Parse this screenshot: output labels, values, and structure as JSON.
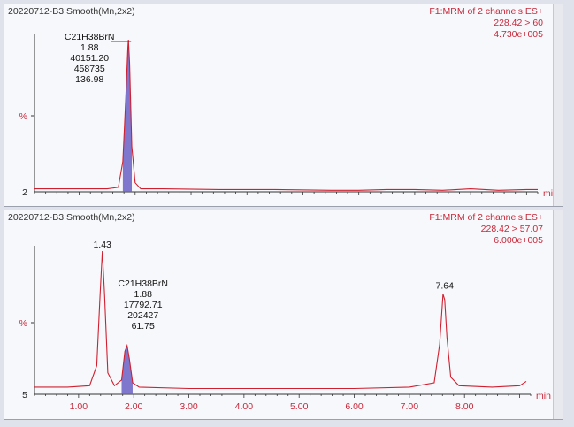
{
  "colors": {
    "trace": "#d02030",
    "fill": "#6a5fc4",
    "axis": "#333333",
    "info": "#c8283a"
  },
  "top_panel": {
    "title": "20220712-B3 Smooth(Mn,2x2)",
    "info_line1": "F1:MRM of 2 channels,ES+",
    "info_line2": "228.42 > 60",
    "info_line3": "4.730e+005",
    "y_label": "%",
    "y_min_label": "2",
    "x_unit": "min",
    "peak_annotation": {
      "name": "C21H38BrN",
      "rt": "1.88",
      "area": "40151.20",
      "height": "458735",
      "sn": "136.98"
    }
  },
  "bottom_panel": {
    "title": "20220712-B3 Smooth(Mn,2x2)",
    "info_line1": "F1:MRM of 2 channels,ES+",
    "info_line2": "228.42 > 57.07",
    "info_line3": "6.000e+005",
    "y_label": "%",
    "y_min_label": "5",
    "x_unit": "min",
    "peak1_label": "1.43",
    "peak3_label": "7.64",
    "peak_annotation": {
      "name": "C21H38BrN",
      "rt": "1.88",
      "area": "17792.71",
      "height": "202427",
      "sn": "61.75"
    },
    "x_ticks": [
      "1.00",
      "2.00",
      "3.00",
      "4.00",
      "5.00",
      "6.00",
      "7.00",
      "8.00"
    ]
  },
  "chart_data": [
    {
      "type": "line",
      "title": "20220712-B3 Smooth(Mn,2x2)",
      "xlabel": "min",
      "ylabel": "%",
      "xlim": [
        0.2,
        9.2
      ],
      "ylim": [
        0,
        100
      ],
      "series": [
        {
          "name": "228.42 > 60",
          "x": [
            0.2,
            1.0,
            1.5,
            1.7,
            1.78,
            1.83,
            1.87,
            1.88,
            1.9,
            1.94,
            2.0,
            2.1,
            2.5,
            3.5,
            4.5,
            5.5,
            6.0,
            6.5,
            7.0,
            7.5,
            8.0,
            8.5,
            9.0,
            9.2
          ],
          "y": [
            2,
            2,
            2,
            3,
            20,
            60,
            95,
            100,
            85,
            30,
            6,
            2,
            2,
            1.5,
            1.5,
            1,
            1,
            1.5,
            1.5,
            1,
            2,
            1,
            1.5,
            1.5
          ]
        }
      ]
    },
    {
      "type": "line",
      "title": "20220712-B3 Smooth(Mn,2x2)",
      "xlabel": "min",
      "ylabel": "%",
      "xlim": [
        0.2,
        9.2
      ],
      "ylim": [
        0,
        100
      ],
      "series": [
        {
          "name": "228.42 > 57.07",
          "x": [
            0.2,
            0.8,
            1.2,
            1.33,
            1.39,
            1.43,
            1.47,
            1.53,
            1.65,
            1.78,
            1.84,
            1.88,
            1.92,
            1.98,
            2.1,
            3.0,
            4.0,
            5.0,
            6.0,
            7.0,
            7.45,
            7.55,
            7.61,
            7.64,
            7.68,
            7.75,
            7.9,
            8.5,
            9.0,
            9.12
          ],
          "y": [
            5,
            5,
            6,
            20,
            70,
            100,
            70,
            15,
            6,
            10,
            30,
            34,
            25,
            8,
            5,
            4,
            4,
            4,
            4,
            5,
            8,
            35,
            70,
            66,
            40,
            12,
            6,
            5,
            6,
            9
          ]
        }
      ]
    }
  ]
}
